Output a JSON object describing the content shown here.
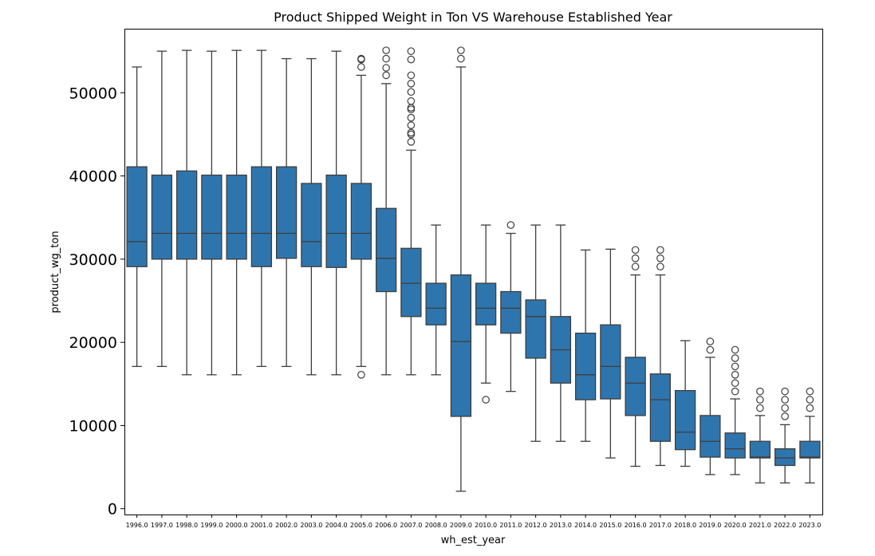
{
  "chart_data": {
    "type": "box",
    "title": "Product Shipped Weight in Ton VS Warehouse Established Year",
    "xlabel": "wh_est_year",
    "ylabel": "product_wg_ton",
    "ylim": [
      -700,
      57700
    ],
    "yticks": [
      0,
      10000,
      20000,
      30000,
      40000,
      50000
    ],
    "grid": false,
    "box_color": "#2f75ad",
    "line_color": "#3d3d3d",
    "categories": [
      "1996.0",
      "1997.0",
      "1998.0",
      "1999.0",
      "2000.0",
      "2001.0",
      "2002.0",
      "2003.0",
      "2004.0",
      "2005.0",
      "2006.0",
      "2007.0",
      "2008.0",
      "2009.0",
      "2010.0",
      "2011.0",
      "2012.0",
      "2013.0",
      "2014.0",
      "2015.0",
      "2016.0",
      "2017.0",
      "2018.0",
      "2019.0",
      "2020.0",
      "2021.0",
      "2022.0",
      "2023.0"
    ],
    "boxes": [
      {
        "whislo": 17100,
        "q1": 29100,
        "med": 32100,
        "q3": 41100,
        "whishi": 53100,
        "fliers": []
      },
      {
        "whislo": 17100,
        "q1": 30000,
        "med": 33100,
        "q3": 40100,
        "whishi": 55000,
        "fliers": []
      },
      {
        "whislo": 16100,
        "q1": 30000,
        "med": 33100,
        "q3": 40600,
        "whishi": 55100,
        "fliers": []
      },
      {
        "whislo": 16100,
        "q1": 30000,
        "med": 33100,
        "q3": 40100,
        "whishi": 55000,
        "fliers": []
      },
      {
        "whislo": 16100,
        "q1": 30000,
        "med": 33100,
        "q3": 40100,
        "whishi": 55100,
        "fliers": []
      },
      {
        "whislo": 17100,
        "q1": 29100,
        "med": 33100,
        "q3": 41100,
        "whishi": 55100,
        "fliers": []
      },
      {
        "whislo": 17100,
        "q1": 30100,
        "med": 33100,
        "q3": 41100,
        "whishi": 54100,
        "fliers": []
      },
      {
        "whislo": 16100,
        "q1": 29100,
        "med": 32100,
        "q3": 39100,
        "whishi": 54100,
        "fliers": []
      },
      {
        "whislo": 16100,
        "q1": 29000,
        "med": 33100,
        "q3": 40100,
        "whishi": 55000,
        "fliers": []
      },
      {
        "whislo": 17100,
        "q1": 30000,
        "med": 33100,
        "q3": 39100,
        "whishi": 52100,
        "fliers": [
          16100,
          53100,
          54000,
          54100
        ]
      },
      {
        "whislo": 16100,
        "q1": 26100,
        "med": 30100,
        "q3": 36100,
        "whishi": 51100,
        "fliers": [
          52100,
          53000,
          54100,
          55100
        ]
      },
      {
        "whislo": 16100,
        "q1": 23100,
        "med": 27100,
        "q3": 31300,
        "whishi": 43100,
        "fliers": [
          44100,
          45000,
          45200,
          46100,
          47000,
          48000,
          48200,
          49000,
          50100,
          51100,
          52100,
          54000,
          55000
        ]
      },
      {
        "whislo": 16100,
        "q1": 22100,
        "med": 24100,
        "q3": 27100,
        "whishi": 34100,
        "fliers": []
      },
      {
        "whislo": 2100,
        "q1": 11100,
        "med": 20100,
        "q3": 28100,
        "whishi": 53100,
        "fliers": [
          54100,
          55100
        ]
      },
      {
        "whislo": 15100,
        "q1": 22100,
        "med": 24100,
        "q3": 27100,
        "whishi": 34100,
        "fliers": [
          13100
        ]
      },
      {
        "whislo": 14100,
        "q1": 21100,
        "med": 24100,
        "q3": 26100,
        "whishi": 33100,
        "fliers": [
          34100
        ]
      },
      {
        "whislo": 8100,
        "q1": 18100,
        "med": 23100,
        "q3": 25100,
        "whishi": 34100,
        "fliers": []
      },
      {
        "whislo": 8100,
        "q1": 15100,
        "med": 19100,
        "q3": 23100,
        "whishi": 34100,
        "fliers": []
      },
      {
        "whislo": 8100,
        "q1": 13100,
        "med": 16100,
        "q3": 21100,
        "whishi": 31100,
        "fliers": []
      },
      {
        "whislo": 6100,
        "q1": 13200,
        "med": 17100,
        "q3": 22100,
        "whishi": 31200,
        "fliers": []
      },
      {
        "whislo": 5100,
        "q1": 11200,
        "med": 15100,
        "q3": 18200,
        "whishi": 28100,
        "fliers": [
          29100,
          30100,
          31100
        ]
      },
      {
        "whislo": 5200,
        "q1": 8100,
        "med": 13100,
        "q3": 16200,
        "whishi": 28100,
        "fliers": [
          29100,
          30100,
          31100
        ]
      },
      {
        "whislo": 5100,
        "q1": 7100,
        "med": 9200,
        "q3": 14200,
        "whishi": 20200,
        "fliers": []
      },
      {
        "whislo": 4100,
        "q1": 6200,
        "med": 8100,
        "q3": 11200,
        "whishi": 18200,
        "fliers": [
          19100,
          20100
        ]
      },
      {
        "whislo": 4100,
        "q1": 6100,
        "med": 7200,
        "q3": 9100,
        "whishi": 13200,
        "fliers": [
          14100,
          15100,
          16100,
          17100,
          18100,
          19100
        ]
      },
      {
        "whislo": 3100,
        "q1": 6100,
        "med": 6200,
        "q3": 8100,
        "whishi": 11200,
        "fliers": [
          12100,
          13100,
          14100
        ]
      },
      {
        "whislo": 3100,
        "q1": 5200,
        "med": 6100,
        "q3": 7200,
        "whishi": 10100,
        "fliers": [
          11100,
          12100,
          13100,
          14100
        ]
      },
      {
        "whislo": 3100,
        "q1": 6100,
        "med": 6200,
        "q3": 8100,
        "whishi": 11100,
        "fliers": [
          12100,
          13100,
          14100
        ]
      }
    ]
  }
}
